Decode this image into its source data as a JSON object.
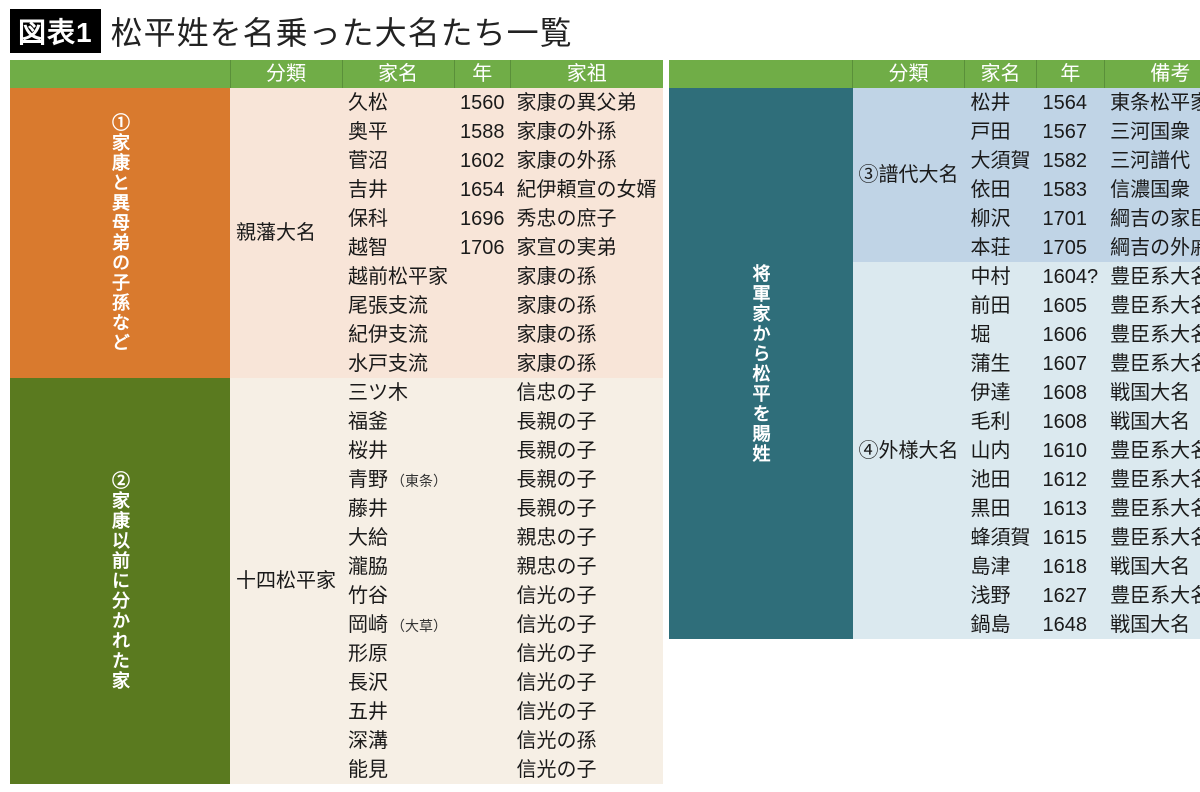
{
  "title_badge": "図表1",
  "title_text": "松平姓を名乗った大名たち一覧",
  "colors": {
    "header_bg": "#70ad47",
    "side_orange": "#d97a2e",
    "side_olive": "#5a7a1f",
    "side_teal": "#2f6e7a",
    "zone_peach": "#f8e5d8",
    "zone_beige": "#f6efe5",
    "zone_bluemid": "#c0d4e6",
    "zone_bluelite": "#dbe9ef",
    "text": "#1a1a1a"
  },
  "left": {
    "headers": [
      "分類",
      "家名",
      "年",
      "家祖"
    ],
    "side1_label": "①家康と異母弟の子孫など",
    "side2_label": "②家康以前に分かれた家",
    "group1_name": "親藩大名",
    "group2_name": "十四松平家",
    "group1_rows": [
      {
        "name": "久松",
        "year": "1560",
        "anc": "家康の異父弟"
      },
      {
        "name": "奥平",
        "year": "1588",
        "anc": "家康の外孫"
      },
      {
        "name": "菅沼",
        "year": "1602",
        "anc": "家康の外孫"
      },
      {
        "name": "吉井",
        "year": "1654",
        "anc": "紀伊頼宣の女婿"
      },
      {
        "name": "保科",
        "year": "1696",
        "anc": "秀忠の庶子"
      },
      {
        "name": "越智",
        "year": "1706",
        "anc": "家宣の実弟"
      },
      {
        "name": "越前松平家",
        "year": "",
        "anc": "家康の孫"
      },
      {
        "name": "尾張支流",
        "year": "",
        "anc": "家康の孫"
      },
      {
        "name": "紀伊支流",
        "year": "",
        "anc": "家康の孫"
      },
      {
        "name": "水戸支流",
        "year": "",
        "anc": "家康の孫"
      }
    ],
    "group2_rows": [
      {
        "name": "三ツ木",
        "year": "",
        "anc": "信忠の子"
      },
      {
        "name": "福釜",
        "year": "",
        "anc": "長親の子"
      },
      {
        "name": "桜井",
        "year": "",
        "anc": "長親の子"
      },
      {
        "name": "青野",
        "sub": "（東条）",
        "year": "",
        "anc": "長親の子"
      },
      {
        "name": "藤井",
        "year": "",
        "anc": "長親の子"
      },
      {
        "name": "大給",
        "year": "",
        "anc": "親忠の子"
      },
      {
        "name": "瀧脇",
        "year": "",
        "anc": "親忠の子"
      },
      {
        "name": "竹谷",
        "year": "",
        "anc": "信光の子"
      },
      {
        "name": "岡崎",
        "sub": "（大草）",
        "year": "",
        "anc": "信光の子"
      },
      {
        "name": "形原",
        "year": "",
        "anc": "信光の子"
      },
      {
        "name": "長沢",
        "year": "",
        "anc": "信光の子"
      },
      {
        "name": "五井",
        "year": "",
        "anc": "信光の子"
      },
      {
        "name": "深溝",
        "year": "",
        "anc": "信光の孫"
      },
      {
        "name": "能見",
        "year": "",
        "anc": "信光の子"
      }
    ]
  },
  "right": {
    "headers": [
      "分類",
      "家名",
      "年",
      "備考"
    ],
    "side_label": "将軍家から松平を賜姓",
    "group3_name": "③譜代大名",
    "group4_name": "④外様大名",
    "group3_rows": [
      {
        "name": "松井",
        "year": "1564",
        "note": "東条松平家老"
      },
      {
        "name": "戸田",
        "year": "1567",
        "note": "三河国衆"
      },
      {
        "name": "大須賀",
        "year": "1582",
        "note": "三河譜代"
      },
      {
        "name": "依田",
        "year": "1583",
        "note": "信濃国衆"
      },
      {
        "name": "柳沢",
        "year": "1701",
        "note": "綱吉の家臣"
      },
      {
        "name": "本荘",
        "year": "1705",
        "note": "綱吉の外戚"
      }
    ],
    "group4_rows": [
      {
        "name": "中村",
        "year": "1604?",
        "note": "豊臣系大名"
      },
      {
        "name": "前田",
        "year": "1605",
        "note": "豊臣系大名"
      },
      {
        "name": "堀",
        "year": "1606",
        "note": "豊臣系大名"
      },
      {
        "name": "蒲生",
        "year": "1607",
        "note": "豊臣系大名"
      },
      {
        "name": "伊達",
        "year": "1608",
        "note": "戦国大名"
      },
      {
        "name": "毛利",
        "year": "1608",
        "note": "戦国大名"
      },
      {
        "name": "山内",
        "year": "1610",
        "note": "豊臣系大名"
      },
      {
        "name": "池田",
        "year": "1612",
        "note": "豊臣系大名"
      },
      {
        "name": "黒田",
        "year": "1613",
        "note": "豊臣系大名"
      },
      {
        "name": "蜂須賀",
        "year": "1615",
        "note": "豊臣系大名"
      },
      {
        "name": "島津",
        "year": "1618",
        "note": "戦国大名"
      },
      {
        "name": "浅野",
        "year": "1627",
        "note": "豊臣系大名"
      },
      {
        "name": "鍋島",
        "year": "1648",
        "note": "戦国大名"
      }
    ]
  }
}
